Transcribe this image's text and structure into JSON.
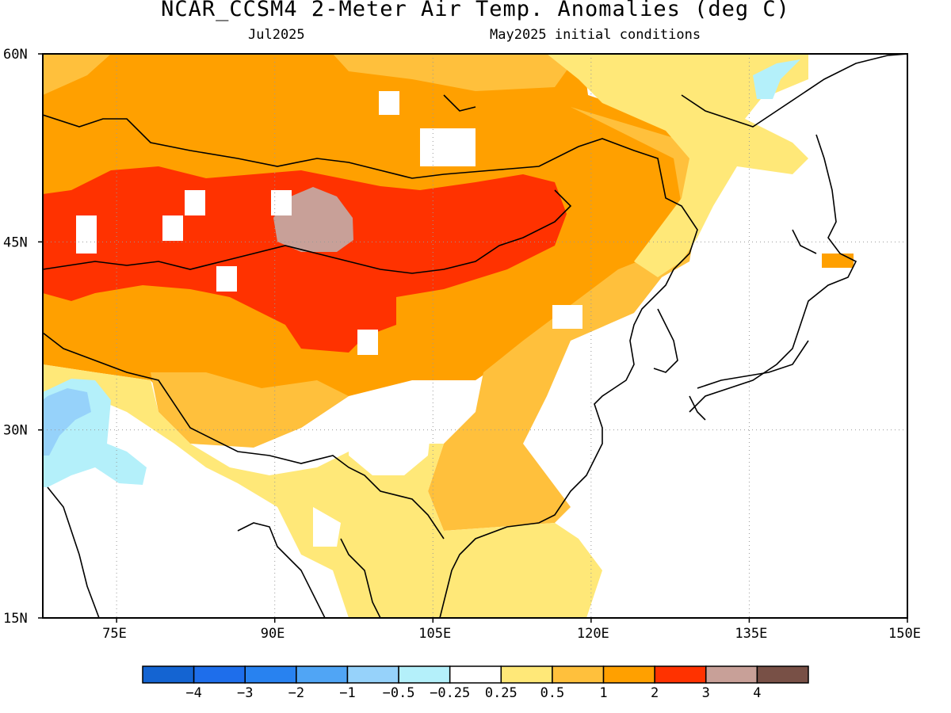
{
  "title": "NCAR_CCSM4 2-Meter Air Temp. Anomalies (deg C)",
  "subtitle_left": "Jul2025",
  "subtitle_right": "May2025 initial conditions",
  "map": {
    "lon_range": [
      68,
      150
    ],
    "lat_range": [
      15,
      60
    ],
    "lon_ticks": [
      {
        "value": 75,
        "label": "75E"
      },
      {
        "value": 90,
        "label": "90E"
      },
      {
        "value": 105,
        "label": "105E"
      },
      {
        "value": 120,
        "label": "120E"
      },
      {
        "value": 135,
        "label": "135E"
      },
      {
        "value": 150,
        "label": "150E"
      }
    ],
    "lat_ticks": [
      {
        "value": 60,
        "label": "60N"
      },
      {
        "value": 45,
        "label": "45N"
      },
      {
        "value": 30,
        "label": "30N"
      },
      {
        "value": 15,
        "label": "15N"
      }
    ],
    "grid": "dotted"
  },
  "colorbar": {
    "colors": [
      "#1464d2",
      "#1e6eeb",
      "#2882f0",
      "#50a5f5",
      "#96d2fa",
      "#b4f0fa",
      "#ffffff",
      "#ffe878",
      "#ffc03c",
      "#ffa000",
      "#ff3200",
      "#c8a098",
      "#785046"
    ],
    "labels": [
      "-4",
      "-3",
      "-2",
      "-1",
      "-0.5",
      "-0.25",
      "0.25",
      "0.5",
      "1",
      "2",
      "3",
      "4"
    ]
  }
}
